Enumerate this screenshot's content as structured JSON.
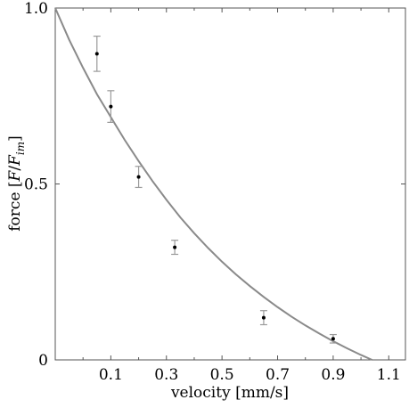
{
  "chart_data": {
    "type": "scatter",
    "title": "",
    "xlabel": "velocity [mm/s]",
    "ylabel": {
      "prefix": "force [",
      "symbol": "F",
      "sep": "/",
      "denom": "F",
      "sub": "im",
      "suffix": "]"
    },
    "xlim": [
      -0.1,
      1.16
    ],
    "ylim": [
      0,
      1.0
    ],
    "x_ticks": [
      0.1,
      0.3,
      0.5,
      0.7,
      0.9,
      1.1
    ],
    "x_tick_labels": [
      "0.1",
      "0.3",
      "0.5",
      "0.7",
      "0.9",
      "1.1"
    ],
    "y_ticks": [
      0,
      0.5,
      1.0
    ],
    "y_tick_labels": [
      "0",
      "0.5",
      "1.0"
    ],
    "minor_x_ticks": [
      0.0,
      0.2,
      0.4,
      0.6,
      0.8,
      1.0
    ],
    "series": [
      {
        "type": "scatter",
        "x": [
          0.05,
          0.1,
          0.2,
          0.33,
          0.65,
          0.9
        ],
        "y": [
          0.87,
          0.72,
          0.52,
          0.32,
          0.12,
          0.06
        ],
        "err": [
          0.05,
          0.045,
          0.03,
          0.02,
          0.02,
          0.012
        ]
      },
      {
        "type": "line",
        "x": [
          -0.1,
          -0.05,
          0.0,
          0.05,
          0.1,
          0.15,
          0.2,
          0.25,
          0.3,
          0.35,
          0.4,
          0.45,
          0.5,
          0.55,
          0.6,
          0.65,
          0.7,
          0.75,
          0.8,
          0.85,
          0.9,
          0.95,
          1.0,
          1.04
        ],
        "y": [
          1.0,
          0.91,
          0.83,
          0.755,
          0.69,
          0.625,
          0.565,
          0.508,
          0.455,
          0.405,
          0.36,
          0.318,
          0.279,
          0.243,
          0.21,
          0.179,
          0.15,
          0.123,
          0.098,
          0.075,
          0.053,
          0.033,
          0.014,
          0.0
        ]
      }
    ],
    "grid": false,
    "legend": "none"
  }
}
